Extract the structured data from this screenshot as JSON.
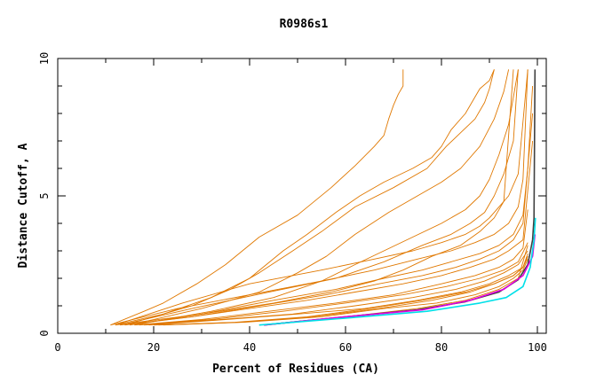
{
  "chart_data": {
    "type": "line",
    "title": "R0986s1",
    "xlabel": "Percent of Residues (CA)",
    "ylabel": "Distance Cutoff, A",
    "xlim": [
      0,
      100
    ],
    "ylim": [
      0,
      10
    ],
    "x_ticks": [
      "0",
      "20",
      "40",
      "60",
      "80",
      "100"
    ],
    "y_ticks": [
      "0",
      "5",
      "10"
    ],
    "grid": false,
    "legend": "none",
    "colors": {
      "orange": "#e07800",
      "magenta": "#e000e0",
      "cyan": "#00e0e8",
      "dark": "#404040"
    },
    "series": [
      {
        "color": "orange",
        "x": [
          11,
          18,
          22,
          29,
          35,
          42,
          50,
          57,
          62,
          66,
          68,
          69,
          70,
          71,
          72,
          72
        ],
        "y": [
          0.3,
          0.8,
          1.1,
          1.8,
          2.5,
          3.5,
          4.3,
          5.3,
          6.1,
          6.8,
          7.2,
          7.8,
          8.3,
          8.7,
          9.0,
          9.6
        ]
      },
      {
        "color": "orange",
        "x": [
          12,
          22,
          32,
          40,
          47,
          52,
          58,
          63,
          68,
          74,
          78,
          80,
          82,
          85,
          87,
          88,
          90,
          91
        ],
        "y": [
          0.3,
          0.7,
          1.3,
          2.0,
          3.0,
          3.6,
          4.4,
          5.0,
          5.5,
          6.0,
          6.4,
          6.8,
          7.4,
          8.0,
          8.6,
          8.9,
          9.2,
          9.6
        ]
      },
      {
        "color": "orange",
        "x": [
          14,
          28,
          36,
          42,
          49,
          55,
          62,
          70,
          77,
          81,
          84,
          87,
          89,
          90,
          91
        ],
        "y": [
          0.3,
          1.0,
          1.6,
          2.2,
          3.0,
          3.7,
          4.6,
          5.3,
          6.0,
          6.8,
          7.3,
          7.8,
          8.4,
          8.9,
          9.6
        ]
      },
      {
        "color": "orange",
        "x": [
          15,
          30,
          42,
          50,
          56,
          62,
          69,
          75,
          80,
          84,
          88,
          91,
          93,
          94
        ],
        "y": [
          0.3,
          0.9,
          1.5,
          2.2,
          2.8,
          3.6,
          4.4,
          5.0,
          5.5,
          6.0,
          6.8,
          7.8,
          8.8,
          9.6
        ]
      },
      {
        "color": "orange",
        "x": [
          16,
          32,
          45,
          55,
          62,
          68,
          74,
          80,
          85,
          88,
          90,
          92,
          94,
          95,
          96
        ],
        "y": [
          0.3,
          0.8,
          1.3,
          1.9,
          2.5,
          3.0,
          3.5,
          4.0,
          4.5,
          5.0,
          5.6,
          6.5,
          7.6,
          8.6,
          9.6
        ]
      },
      {
        "color": "orange",
        "x": [
          12,
          30,
          45,
          57,
          66,
          72,
          78,
          84,
          88,
          91,
          93,
          95
        ],
        "y": [
          0.3,
          0.7,
          1.1,
          1.5,
          1.9,
          2.3,
          2.8,
          3.2,
          3.7,
          4.2,
          4.8,
          9.6
        ]
      },
      {
        "color": "orange",
        "x": [
          13,
          28,
          44,
          58,
          68,
          76,
          82,
          86,
          89,
          91,
          93,
          95,
          96
        ],
        "y": [
          0.3,
          0.9,
          1.5,
          2.0,
          2.6,
          3.2,
          3.6,
          4.0,
          4.4,
          5.0,
          5.8,
          7.0,
          9.6
        ]
      },
      {
        "color": "orange",
        "x": [
          12,
          26,
          40,
          55,
          66,
          74,
          80,
          85,
          88,
          90,
          92,
          94,
          96,
          98
        ],
        "y": [
          0.3,
          1.1,
          1.8,
          2.3,
          2.7,
          3.0,
          3.3,
          3.6,
          3.9,
          4.2,
          4.6,
          5.0,
          5.8,
          9.6
        ]
      },
      {
        "color": "orange",
        "x": [
          11,
          25,
          40,
          55,
          66,
          75,
          82,
          87,
          91,
          94,
          96,
          97,
          98
        ],
        "y": [
          0.3,
          0.9,
          1.4,
          1.9,
          2.3,
          2.7,
          3.0,
          3.3,
          3.6,
          4.0,
          4.6,
          5.6,
          9.6
        ]
      },
      {
        "color": "orange",
        "x": [
          15,
          30,
          45,
          58,
          68,
          76,
          82,
          88,
          92,
          95,
          97,
          98,
          99
        ],
        "y": [
          0.3,
          0.7,
          1.2,
          1.6,
          2.0,
          2.3,
          2.6,
          2.9,
          3.2,
          3.6,
          4.3,
          6.0,
          9.0
        ]
      },
      {
        "color": "orange",
        "x": [
          13,
          28,
          42,
          56,
          67,
          76,
          83,
          88,
          92,
          95,
          97,
          99
        ],
        "y": [
          0.3,
          0.6,
          1.0,
          1.4,
          1.8,
          2.1,
          2.4,
          2.7,
          3.0,
          3.4,
          4.0,
          8.0
        ]
      },
      {
        "color": "orange",
        "x": [
          14,
          28,
          40,
          52,
          62,
          72,
          80,
          86,
          91,
          94,
          97,
          99
        ],
        "y": [
          0.3,
          0.6,
          0.9,
          1.2,
          1.5,
          1.8,
          2.1,
          2.4,
          2.7,
          3.0,
          3.4,
          7.0
        ]
      },
      {
        "color": "orange",
        "x": [
          16,
          30,
          44,
          58,
          70,
          80,
          87,
          92,
          95,
          97,
          98
        ],
        "y": [
          0.3,
          0.5,
          0.8,
          1.1,
          1.4,
          1.8,
          2.1,
          2.4,
          2.7,
          3.1,
          4.5
        ]
      },
      {
        "color": "orange",
        "x": [
          17,
          32,
          47,
          60,
          72,
          81,
          88,
          93,
          96,
          98
        ],
        "y": [
          0.3,
          0.5,
          0.8,
          1.1,
          1.4,
          1.7,
          2.0,
          2.3,
          2.6,
          3.3
        ]
      },
      {
        "color": "orange",
        "x": [
          18,
          34,
          49,
          62,
          74,
          83,
          89,
          93,
          96,
          98
        ],
        "y": [
          0.3,
          0.5,
          0.7,
          1.0,
          1.3,
          1.6,
          1.9,
          2.2,
          2.5,
          3.0
        ]
      },
      {
        "color": "orange",
        "x": [
          19,
          35,
          50,
          64,
          75,
          84,
          90,
          94,
          97,
          98
        ],
        "y": [
          0.3,
          0.5,
          0.7,
          0.9,
          1.2,
          1.5,
          1.8,
          2.1,
          2.4,
          2.9
        ]
      },
      {
        "color": "orange",
        "x": [
          20,
          37,
          52,
          65,
          76,
          85,
          91,
          95,
          97,
          98
        ],
        "y": [
          0.3,
          0.4,
          0.6,
          0.9,
          1.2,
          1.5,
          1.8,
          2.1,
          2.4,
          2.8
        ]
      },
      {
        "color": "orange",
        "x": [
          21,
          38,
          53,
          67,
          78,
          86,
          91,
          95,
          97,
          98
        ],
        "y": [
          0.3,
          0.4,
          0.6,
          0.9,
          1.2,
          1.5,
          1.8,
          2.1,
          2.4,
          2.8
        ]
      },
      {
        "color": "orange",
        "x": [
          22,
          39,
          55,
          68,
          79,
          87,
          92,
          95,
          97,
          98
        ],
        "y": [
          0.3,
          0.4,
          0.6,
          0.9,
          1.1,
          1.4,
          1.7,
          2.0,
          2.3,
          2.7
        ]
      },
      {
        "color": "orange",
        "x": [
          42,
          60,
          75,
          85,
          92,
          96,
          98
        ],
        "y": [
          0.3,
          0.6,
          0.9,
          1.2,
          1.6,
          2.0,
          3.2
        ]
      },
      {
        "color": "dark",
        "x": [
          43,
          60,
          75,
          85,
          92,
          96,
          98,
          99,
          99.3,
          99.5
        ],
        "y": [
          0.3,
          0.6,
          0.85,
          1.15,
          1.5,
          1.95,
          2.5,
          3.4,
          4.2,
          9.6
        ]
      },
      {
        "color": "magenta",
        "x": [
          43,
          60,
          76,
          86,
          93,
          97,
          99,
          99.5
        ],
        "y": [
          0.3,
          0.6,
          0.85,
          1.2,
          1.6,
          2.1,
          2.8,
          3.6
        ]
      },
      {
        "color": "cyan",
        "x": [
          42,
          60,
          77,
          88,
          93.5,
          97,
          98.5,
          99.3,
          99.6
        ],
        "y": [
          0.3,
          0.55,
          0.8,
          1.1,
          1.3,
          1.7,
          2.4,
          3.4,
          4.2
        ]
      }
    ]
  }
}
